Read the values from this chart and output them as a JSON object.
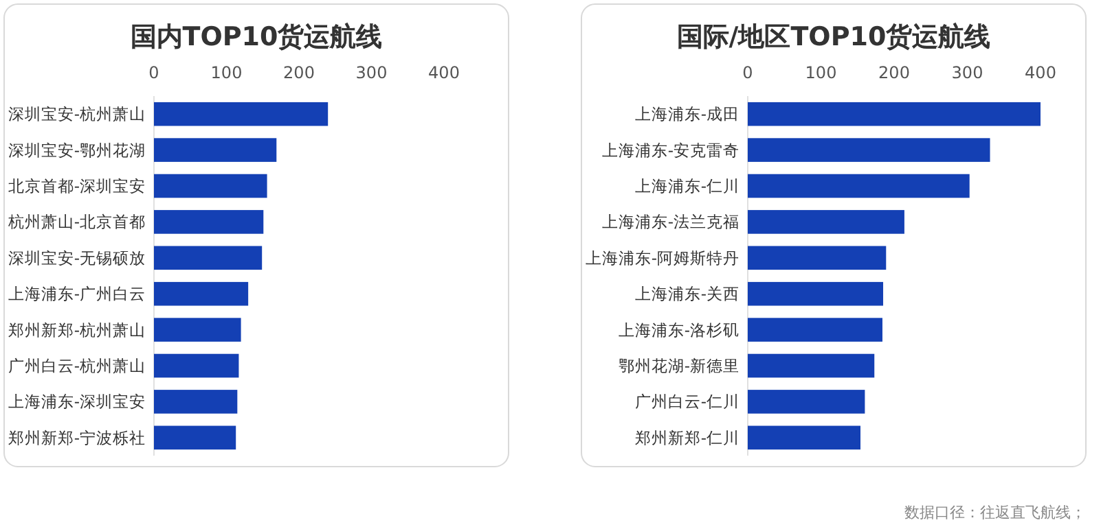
{
  "chart_data": [
    {
      "type": "bar",
      "orientation": "horizontal",
      "title": "国内TOP10货运航线",
      "categories": [
        "深圳宝安-杭州萧山",
        "深圳宝安-鄂州花湖",
        "北京首都-深圳宝安",
        "杭州萧山-北京首都",
        "深圳宝安-无锡硕放",
        "上海浦东-广州白云",
        "郑州新郑-杭州萧山",
        "广州白云-杭州萧山",
        "上海浦东-深圳宝安",
        "郑州新郑-宁波栎社"
      ],
      "values": [
        240,
        169,
        156,
        151,
        149,
        130,
        120,
        117,
        115,
        113
      ],
      "color": "#1440b4",
      "xlim": [
        0,
        400
      ],
      "xticks": [
        0,
        100,
        200,
        300,
        400
      ],
      "grid": false,
      "legend": false
    },
    {
      "type": "bar",
      "orientation": "horizontal",
      "title": "国际/地区TOP10货运航线",
      "categories": [
        "上海浦东-成田",
        "上海浦东-安克雷奇",
        "上海浦东-仁川",
        "上海浦东-法兰克福",
        "上海浦东-阿姆斯特丹",
        "上海浦东-关西",
        "上海浦东-洛杉矶",
        "鄂州花湖-新德里",
        "广州白云-仁川",
        "郑州新郑-仁川"
      ],
      "values": [
        400,
        331,
        303,
        214,
        189,
        185,
        184,
        173,
        160,
        154
      ],
      "color": "#1440b4",
      "xlim": [
        0,
        400
      ],
      "xticks": [
        0,
        100,
        200,
        300,
        400
      ],
      "grid": false,
      "legend": false,
      "annotations": [
        "数据口径：往返直飞航线；"
      ]
    }
  ]
}
